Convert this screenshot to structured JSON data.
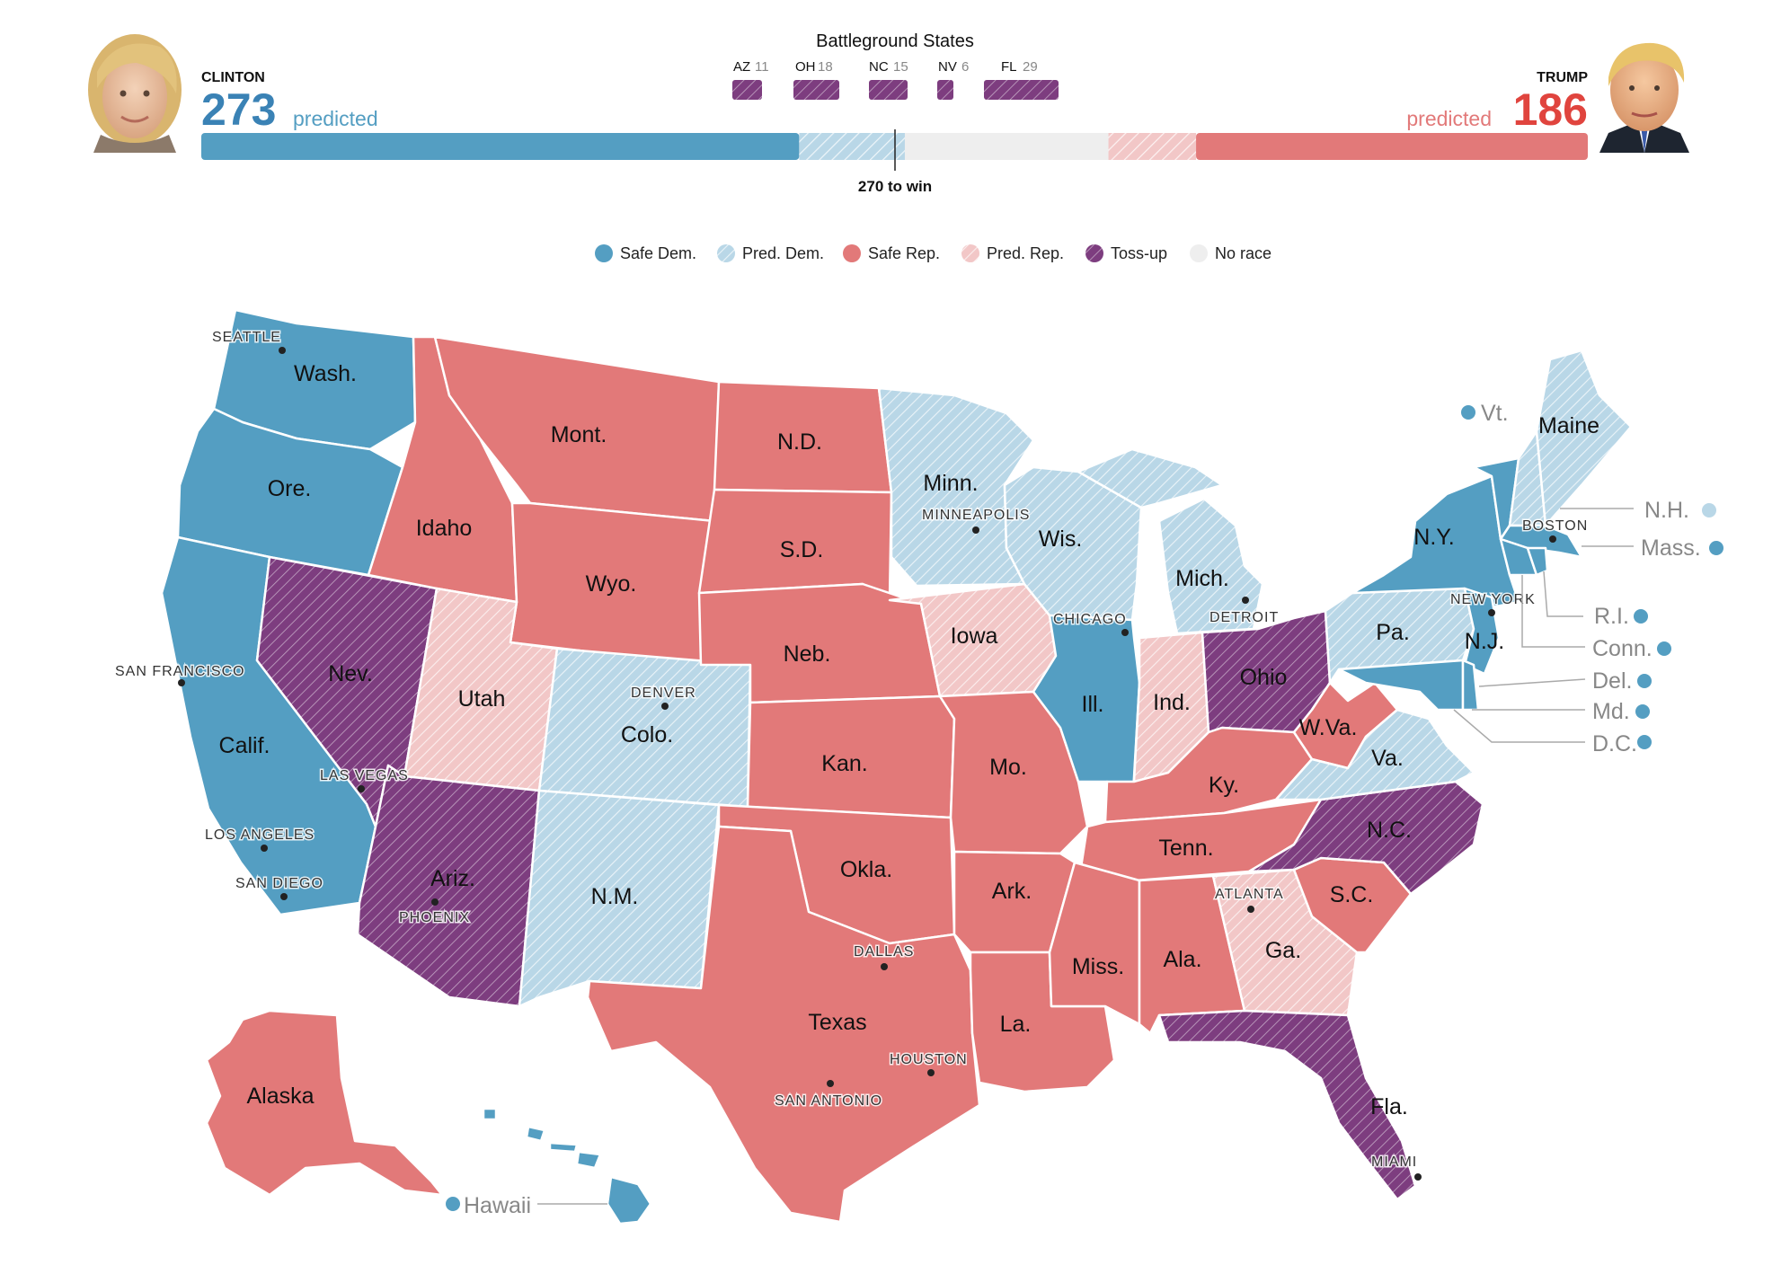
{
  "header": {
    "battleground_title": "Battleground States",
    "clinton": {
      "name": "CLINTON",
      "votes": "273",
      "suffix": "predicted"
    },
    "trump": {
      "name": "TRUMP",
      "votes": "186",
      "prefix": "predicted"
    },
    "threshold_label": "270 to win",
    "battlegrounds": [
      {
        "abbr": "AZ",
        "ev": "11"
      },
      {
        "abbr": "OH",
        "ev": "18"
      },
      {
        "abbr": "NC",
        "ev": "15"
      },
      {
        "abbr": "NV",
        "ev": "6"
      },
      {
        "abbr": "FL",
        "ev": "29"
      }
    ]
  },
  "bar": {
    "safe_dem": 232,
    "pred_dem": 41,
    "no_race": 79,
    "pred_rep": 34,
    "safe_rep": 152,
    "total": 538
  },
  "legend": [
    {
      "key": "safe_dem",
      "label": "Safe Dem."
    },
    {
      "key": "pred_dem",
      "label": "Pred. Dem."
    },
    {
      "key": "safe_rep",
      "label": "Safe Rep."
    },
    {
      "key": "pred_rep",
      "label": "Pred. Rep."
    },
    {
      "key": "tossup",
      "label": "Toss-up"
    },
    {
      "key": "none",
      "label": "No race"
    }
  ],
  "colors": {
    "safe_dem": "#549ec2",
    "pred_dem": "#b9d7e7",
    "safe_rep": "#e27979",
    "pred_rep": "#f2c7c7",
    "tossup": "#7d3d7f",
    "none": "#eeeeee",
    "clinton_text": "#3a82b5",
    "trump_text": "#e0443e"
  },
  "states": {
    "wa": {
      "label": "Wash.",
      "status": "safe_dem"
    },
    "or": {
      "label": "Ore.",
      "status": "safe_dem"
    },
    "ca": {
      "label": "Calif.",
      "status": "safe_dem"
    },
    "nv": {
      "label": "Nev.",
      "status": "tossup"
    },
    "id": {
      "label": "Idaho",
      "status": "safe_rep"
    },
    "mt": {
      "label": "Mont.",
      "status": "safe_rep"
    },
    "wy": {
      "label": "Wyo.",
      "status": "safe_rep"
    },
    "ut": {
      "label": "Utah",
      "status": "pred_rep"
    },
    "az": {
      "label": "Ariz.",
      "status": "tossup"
    },
    "co": {
      "label": "Colo.",
      "status": "pred_dem"
    },
    "nm": {
      "label": "N.M.",
      "status": "pred_dem"
    },
    "nd": {
      "label": "N.D.",
      "status": "safe_rep"
    },
    "sd": {
      "label": "S.D.",
      "status": "safe_rep"
    },
    "ne": {
      "label": "Neb.",
      "status": "safe_rep"
    },
    "ks": {
      "label": "Kan.",
      "status": "safe_rep"
    },
    "ok": {
      "label": "Okla.",
      "status": "safe_rep"
    },
    "tx": {
      "label": "Texas",
      "status": "safe_rep"
    },
    "mn": {
      "label": "Minn.",
      "status": "pred_dem"
    },
    "ia": {
      "label": "Iowa",
      "status": "pred_rep"
    },
    "mo": {
      "label": "Mo.",
      "status": "safe_rep"
    },
    "ar": {
      "label": "Ark.",
      "status": "safe_rep"
    },
    "la": {
      "label": "La.",
      "status": "safe_rep"
    },
    "wi": {
      "label": "Wis.",
      "status": "pred_dem"
    },
    "il": {
      "label": "Ill.",
      "status": "safe_dem"
    },
    "mi": {
      "label": "Mich.",
      "status": "pred_dem"
    },
    "in": {
      "label": "Ind.",
      "status": "pred_rep"
    },
    "oh": {
      "label": "Ohio",
      "status": "tossup"
    },
    "ky": {
      "label": "Ky.",
      "status": "safe_rep"
    },
    "tn": {
      "label": "Tenn.",
      "status": "safe_rep"
    },
    "ms": {
      "label": "Miss.",
      "status": "safe_rep"
    },
    "al": {
      "label": "Ala.",
      "status": "safe_rep"
    },
    "ga": {
      "label": "Ga.",
      "status": "pred_rep"
    },
    "fl": {
      "label": "Fla.",
      "status": "tossup"
    },
    "sc": {
      "label": "S.C.",
      "status": "safe_rep"
    },
    "nc": {
      "label": "N.C.",
      "status": "tossup"
    },
    "va": {
      "label": "Va.",
      "status": "pred_dem"
    },
    "wv": {
      "label": "W.Va.",
      "status": "safe_rep"
    },
    "pa": {
      "label": "Pa.",
      "status": "pred_dem"
    },
    "ny": {
      "label": "N.Y.",
      "status": "safe_dem"
    },
    "nj": {
      "label": "N.J.",
      "status": "safe_dem"
    },
    "md": {
      "label": "",
      "status": "safe_dem"
    },
    "de": {
      "label": "",
      "status": "safe_dem"
    },
    "vt": {
      "label": "",
      "status": "safe_dem"
    },
    "nh": {
      "label": "",
      "status": "pred_dem"
    },
    "me": {
      "label": "Maine",
      "status": "pred_dem"
    },
    "ma": {
      "label": "",
      "status": "safe_dem"
    },
    "ct": {
      "label": "",
      "status": "safe_dem"
    },
    "ri": {
      "label": "",
      "status": "safe_dem"
    },
    "ak": {
      "label": "Alaska",
      "status": "safe_rep"
    },
    "hi": {
      "label": "",
      "status": "safe_dem"
    }
  },
  "callouts": {
    "vt": "Vt.",
    "nh": "N.H.",
    "ma": "Mass.",
    "ri": "R.I.",
    "ct": "Conn.",
    "de": "Del.",
    "md": "Md.",
    "dc": "D.C.",
    "hi": "Hawaii"
  },
  "callout_status": {
    "vt": "safe_dem",
    "nh": "pred_dem",
    "ma": "safe_dem",
    "ri": "safe_dem",
    "ct": "safe_dem",
    "de": "safe_dem",
    "md": "safe_dem",
    "dc": "safe_dem",
    "hi": "safe_dem"
  },
  "cities": {
    "seattle": "SEATTLE",
    "san_francisco": "SAN FRANCISCO",
    "los_angeles": "LOS ANGELES",
    "san_diego": "SAN DIEGO",
    "las_vegas": "LAS VEGAS",
    "phoenix": "PHOENIX",
    "denver": "DENVER",
    "minneapolis": "MINNEAPOLIS",
    "chicago": "CHICAGO",
    "detroit": "DETROIT",
    "dallas": "DALLAS",
    "houston": "HOUSTON",
    "san_antonio": "SAN ANTONIO",
    "atlanta": "ATLANTA",
    "miami": "MIAMI",
    "new_york": "NEW YORK",
    "boston": "BOSTON"
  }
}
